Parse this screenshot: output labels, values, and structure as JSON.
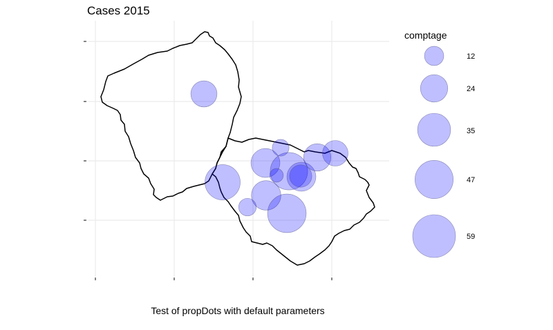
{
  "title": "Cases 2015",
  "caption": "Test of propDots with default parameters",
  "legend": {
    "title": "comptage",
    "entries": [
      {
        "label": "12",
        "value": 12
      },
      {
        "label": "24",
        "value": 24
      },
      {
        "label": "35",
        "value": 35
      },
      {
        "label": "47",
        "value": 47
      },
      {
        "label": "59",
        "value": 59
      }
    ]
  },
  "colors": {
    "dot_fill": "#0000ff",
    "dot_fill_opacity": 0.25,
    "dot_stroke": "#4a4a80",
    "boundary": "#000000",
    "grid": "#ebebeb"
  },
  "dots": [
    {
      "name": "dot-1",
      "value": 22
    },
    {
      "name": "dot-2",
      "value": 27
    },
    {
      "name": "dot-3",
      "value": 28
    },
    {
      "name": "dot-4",
      "value": 45
    },
    {
      "name": "dot-5",
      "value": 40
    },
    {
      "name": "dot-6",
      "value": 9
    },
    {
      "name": "dot-7",
      "value": 6
    },
    {
      "name": "dot-8",
      "value": 10
    },
    {
      "name": "dot-9",
      "value": 27
    },
    {
      "name": "dot-10",
      "value": 24
    },
    {
      "name": "dot-11",
      "value": 21
    },
    {
      "name": "dot-12",
      "value": 16
    },
    {
      "name": "dot-13",
      "value": 48
    }
  ]
}
